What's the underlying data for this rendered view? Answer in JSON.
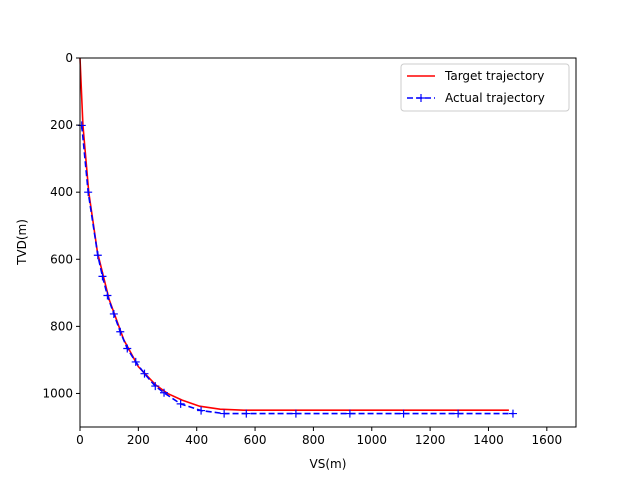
{
  "chart_data": {
    "type": "line",
    "title": "",
    "xlabel": "VS(m)",
    "ylabel": "TVD(m)",
    "xlim": [
      0,
      1700
    ],
    "ylim": [
      1100,
      0
    ],
    "y_inverted": true,
    "grid": false,
    "legend_position": "top-right",
    "xticks": [
      0,
      200,
      400,
      600,
      800,
      1000,
      1200,
      1400,
      1600
    ],
    "yticks": [
      0,
      200,
      400,
      600,
      800,
      1000
    ],
    "series": [
      {
        "name": "Target trajectory",
        "color": "#ff0000",
        "style": "solid",
        "marker": "none",
        "x": [
          0,
          10,
          30,
          60,
          100,
          150,
          200,
          260,
          300,
          350,
          410,
          480,
          560,
          1470
        ],
        "y": [
          0,
          200,
          400,
          580,
          720,
          840,
          920,
          975,
          1000,
          1020,
          1038,
          1047,
          1050,
          1050
        ]
      },
      {
        "name": "Actual trajectory",
        "color": "#0000ff",
        "style": "dashed",
        "marker": "+",
        "x": [
          6,
          28,
          61,
          77,
          94,
          116,
          138,
          162,
          191,
          221,
          258,
          288,
          345,
          415,
          494,
          570,
          740,
          925,
          1109,
          1296,
          1484
        ],
        "y": [
          201,
          400,
          588,
          651,
          708,
          763,
          816,
          866,
          906,
          941,
          978,
          998,
          1031,
          1051,
          1060,
          1060,
          1060,
          1060,
          1060,
          1060,
          1060
        ]
      }
    ]
  }
}
